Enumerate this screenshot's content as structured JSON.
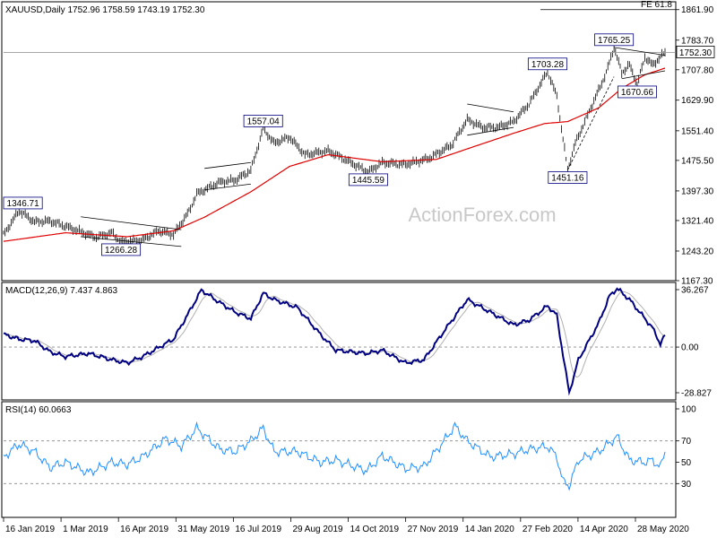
{
  "chart_data": {
    "type": "line",
    "symbol": "XAUUSD",
    "timeframe": "Daily",
    "header": "XAUUSD,Daily  1752.96 1758.59 1743.19 1752.30",
    "ohlc": {
      "open": 1752.96,
      "high": 1758.59,
      "low": 1743.19,
      "close": 1752.3
    },
    "current_price_label": "1752.30",
    "fe_label": "FE 61.8",
    "fe_level": 1861.9,
    "watermark": "ActionForex.com",
    "price_axis": {
      "ylim": [
        1167.3,
        1882
      ],
      "ticks": [
        "1861.90",
        "1783.70",
        "1707.80",
        "1629.90",
        "1551.40",
        "1475.50",
        "1397.30",
        "1321.40",
        "1243.20",
        "1167.30"
      ]
    },
    "date_ticks": [
      "16 Jan 2019",
      "1 Mar 2019",
      "16 Apr 2019",
      "31 May 2019",
      "16 Jul 2019",
      "29 Aug 2019",
      "14 Oct 2019",
      "27 Nov 2019",
      "14 Jan 2020",
      "27 Feb 2020",
      "14 Apr 2020",
      "28 May 2020"
    ],
    "price_annotations": [
      {
        "label": "1346.71",
        "idx": 10,
        "price": 1346.71
      },
      {
        "label": "1266.28",
        "idx": 76,
        "price": 1266.28
      },
      {
        "label": "1557.04",
        "idx": 168,
        "price": 1557.04
      },
      {
        "label": "1445.59",
        "idx": 236,
        "price": 1445.59
      },
      {
        "label": "1703.28",
        "idx": 352,
        "price": 1703.28
      },
      {
        "label": "1451.16",
        "idx": 365,
        "price": 1451.16
      },
      {
        "label": "1765.25",
        "idx": 395,
        "price": 1765.25
      },
      {
        "label": "1670.66",
        "idx": 410,
        "price": 1670.66
      }
    ],
    "price_anchors": [
      [
        0,
        1285
      ],
      [
        10,
        1346.71
      ],
      [
        20,
        1318
      ],
      [
        30,
        1320
      ],
      [
        45,
        1300
      ],
      [
        60,
        1278
      ],
      [
        70,
        1290
      ],
      [
        76,
        1266.28
      ],
      [
        90,
        1272
      ],
      [
        100,
        1295
      ],
      [
        110,
        1285
      ],
      [
        120,
        1345
      ],
      [
        125,
        1390
      ],
      [
        140,
        1420
      ],
      [
        150,
        1425
      ],
      [
        160,
        1450
      ],
      [
        168,
        1557.04
      ],
      [
        175,
        1520
      ],
      [
        185,
        1535
      ],
      [
        195,
        1490
      ],
      [
        210,
        1500
      ],
      [
        220,
        1480
      ],
      [
        236,
        1445.59
      ],
      [
        245,
        1470
      ],
      [
        260,
        1465
      ],
      [
        275,
        1480
      ],
      [
        290,
        1515
      ],
      [
        300,
        1580
      ],
      [
        310,
        1560
      ],
      [
        320,
        1560
      ],
      [
        330,
        1575
      ],
      [
        340,
        1620
      ],
      [
        352,
        1703.28
      ],
      [
        358,
        1640
      ],
      [
        362,
        1530
      ],
      [
        365,
        1451.16
      ],
      [
        370,
        1520
      ],
      [
        380,
        1610
      ],
      [
        390,
        1700
      ],
      [
        395,
        1765.25
      ],
      [
        400,
        1700
      ],
      [
        405,
        1720
      ],
      [
        410,
        1670.66
      ],
      [
        415,
        1740
      ],
      [
        420,
        1720
      ],
      [
        428,
        1752.3
      ]
    ],
    "sma_anchors": [
      [
        0,
        1268
      ],
      [
        40,
        1290
      ],
      [
        80,
        1280
      ],
      [
        110,
        1295
      ],
      [
        130,
        1330
      ],
      [
        160,
        1395
      ],
      [
        185,
        1460
      ],
      [
        210,
        1490
      ],
      [
        245,
        1472
      ],
      [
        280,
        1478
      ],
      [
        300,
        1505
      ],
      [
        330,
        1545
      ],
      [
        350,
        1570
      ],
      [
        365,
        1575
      ],
      [
        385,
        1610
      ],
      [
        400,
        1660
      ],
      [
        415,
        1695
      ],
      [
        428,
        1712
      ]
    ],
    "macd": {
      "label": "MACD(12,26,9) 7.437 4.863",
      "ylim": [
        -28.827,
        36.267
      ],
      "ticks": [
        "36.267",
        "0.00",
        "-28.827"
      ],
      "anchors": [
        [
          0,
          8
        ],
        [
          10,
          5
        ],
        [
          20,
          4
        ],
        [
          30,
          -3
        ],
        [
          40,
          -6
        ],
        [
          55,
          -4
        ],
        [
          70,
          -8
        ],
        [
          80,
          -10
        ],
        [
          90,
          -6
        ],
        [
          110,
          5
        ],
        [
          120,
          22
        ],
        [
          128,
          36
        ],
        [
          140,
          28
        ],
        [
          150,
          22
        ],
        [
          160,
          18
        ],
        [
          168,
          34
        ],
        [
          175,
          30
        ],
        [
          190,
          25
        ],
        [
          205,
          8
        ],
        [
          215,
          -2
        ],
        [
          235,
          -4
        ],
        [
          245,
          -2
        ],
        [
          260,
          -10
        ],
        [
          272,
          -8
        ],
        [
          285,
          10
        ],
        [
          300,
          30
        ],
        [
          315,
          22
        ],
        [
          330,
          14
        ],
        [
          340,
          17
        ],
        [
          352,
          26
        ],
        [
          358,
          20
        ],
        [
          362,
          -5
        ],
        [
          366,
          -28.827
        ],
        [
          372,
          -8
        ],
        [
          385,
          15
        ],
        [
          392,
          32
        ],
        [
          397,
          37
        ],
        [
          405,
          30
        ],
        [
          415,
          18
        ],
        [
          420,
          12
        ],
        [
          425,
          2
        ],
        [
          428,
          7.437
        ]
      ]
    },
    "rsi": {
      "label": "RSI(14) 60.0663",
      "ylim": [
        0,
        100
      ],
      "ticks": [
        "100",
        "70",
        "50",
        "30"
      ],
      "levels": [
        70,
        30
      ],
      "anchors": [
        [
          0,
          55
        ],
        [
          10,
          67
        ],
        [
          20,
          60
        ],
        [
          30,
          45
        ],
        [
          40,
          50
        ],
        [
          55,
          40
        ],
        [
          70,
          50
        ],
        [
          80,
          48
        ],
        [
          90,
          55
        ],
        [
          105,
          72
        ],
        [
          115,
          65
        ],
        [
          125,
          82
        ],
        [
          140,
          62
        ],
        [
          150,
          60
        ],
        [
          160,
          70
        ],
        [
          168,
          82
        ],
        [
          175,
          60
        ],
        [
          190,
          60
        ],
        [
          205,
          50
        ],
        [
          215,
          52
        ],
        [
          235,
          42
        ],
        [
          245,
          56
        ],
        [
          260,
          44
        ],
        [
          272,
          46
        ],
        [
          285,
          70
        ],
        [
          292,
          84
        ],
        [
          300,
          70
        ],
        [
          315,
          55
        ],
        [
          330,
          58
        ],
        [
          340,
          62
        ],
        [
          352,
          65
        ],
        [
          358,
          55
        ],
        [
          362,
          32
        ],
        [
          366,
          28
        ],
        [
          372,
          52
        ],
        [
          385,
          60
        ],
        [
          392,
          68
        ],
        [
          397,
          74
        ],
        [
          405,
          52
        ],
        [
          415,
          50
        ],
        [
          420,
          52
        ],
        [
          425,
          45
        ],
        [
          428,
          60.0663
        ]
      ]
    }
  }
}
